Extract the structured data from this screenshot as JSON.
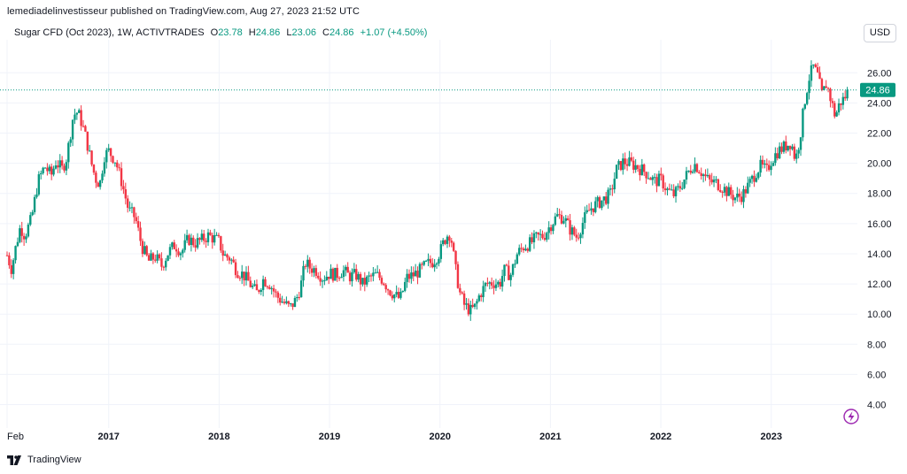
{
  "header": {
    "published": "lemediadelinvestisseur published on TradingView.com, Aug 27, 2023 21:52 UTC"
  },
  "legend": {
    "symbol": "Sugar CFD (Oct 2023), 1W, ACTIVTRADES",
    "o_label": "O",
    "o_value": "23.78",
    "h_label": "H",
    "h_value": "24.86",
    "l_label": "L",
    "l_value": "23.06",
    "c_label": "C",
    "c_value": "24.86",
    "change": "+1.07 (+4.50%)"
  },
  "currency_button": "USD",
  "footer": {
    "brand": "TradingView"
  },
  "colors": {
    "up": "#089981",
    "down": "#f23645",
    "grid": "#f0f3fa",
    "axis_text": "#131722",
    "price_line": "#089981",
    "flash": "#9c27b0"
  },
  "chart_data": {
    "type": "candlestick",
    "title": "Sugar CFD (Oct 2023), 1W, ACTIVTRADES",
    "x_tick_labels": [
      "Feb",
      "2017",
      "2018",
      "2019",
      "2020",
      "2021",
      "2022",
      "2023"
    ],
    "y_tick_labels": [
      "4.00",
      "6.00",
      "8.00",
      "10.00",
      "12.00",
      "14.00",
      "16.00",
      "18.00",
      "20.00",
      "22.00",
      "24.00",
      "26.00"
    ],
    "ylim": [
      2.8,
      27.6
    ],
    "xlim": [
      2016.08,
      2023.78
    ],
    "last_price_label": "24.86",
    "last_price": 24.86,
    "grid": true,
    "price_path": [
      [
        2016.08,
        13.9
      ],
      [
        2016.12,
        13.0
      ],
      [
        2016.16,
        14.5
      ],
      [
        2016.2,
        15.8
      ],
      [
        2016.24,
        15.2
      ],
      [
        2016.3,
        16.3
      ],
      [
        2016.36,
        18.8
      ],
      [
        2016.42,
        19.8
      ],
      [
        2016.48,
        19.2
      ],
      [
        2016.52,
        20.1
      ],
      [
        2016.58,
        19.6
      ],
      [
        2016.62,
        20.4
      ],
      [
        2016.68,
        23.2
      ],
      [
        2016.72,
        23.4
      ],
      [
        2016.76,
        22.6
      ],
      [
        2016.8,
        21.5
      ],
      [
        2016.84,
        20.1
      ],
      [
        2016.88,
        19.0
      ],
      [
        2016.92,
        18.6
      ],
      [
        2016.96,
        20.5
      ],
      [
        2017.0,
        20.8
      ],
      [
        2017.06,
        20.2
      ],
      [
        2017.12,
        18.7
      ],
      [
        2017.18,
        16.9
      ],
      [
        2017.24,
        16.4
      ],
      [
        2017.3,
        14.5
      ],
      [
        2017.36,
        13.5
      ],
      [
        2017.42,
        13.8
      ],
      [
        2017.48,
        13.2
      ],
      [
        2017.54,
        14.1
      ],
      [
        2017.6,
        14.6
      ],
      [
        2017.66,
        14.1
      ],
      [
        2017.72,
        15.0
      ],
      [
        2017.78,
        14.7
      ],
      [
        2017.84,
        14.9
      ],
      [
        2017.9,
        15.2
      ],
      [
        2017.96,
        15.0
      ],
      [
        2018.0,
        14.8
      ],
      [
        2018.04,
        13.9
      ],
      [
        2018.1,
        13.7
      ],
      [
        2018.16,
        12.9
      ],
      [
        2018.22,
        12.6
      ],
      [
        2018.28,
        12.0
      ],
      [
        2018.34,
        11.4
      ],
      [
        2018.4,
        12.3
      ],
      [
        2018.46,
        12.0
      ],
      [
        2018.52,
        11.2
      ],
      [
        2018.58,
        10.8
      ],
      [
        2018.64,
        10.4
      ],
      [
        2018.7,
        11.0
      ],
      [
        2018.74,
        11.9
      ],
      [
        2018.78,
        13.4
      ],
      [
        2018.82,
        13.1
      ],
      [
        2018.88,
        12.9
      ],
      [
        2018.94,
        12.4
      ],
      [
        2019.0,
        12.7
      ],
      [
        2019.06,
        12.6
      ],
      [
        2019.12,
        12.9
      ],
      [
        2019.18,
        12.5
      ],
      [
        2019.24,
        12.6
      ],
      [
        2019.3,
        12.0
      ],
      [
        2019.36,
        12.4
      ],
      [
        2019.42,
        12.6
      ],
      [
        2019.48,
        12.3
      ],
      [
        2019.54,
        11.6
      ],
      [
        2019.6,
        11.2
      ],
      [
        2019.64,
        11.0
      ],
      [
        2019.7,
        12.4
      ],
      [
        2019.76,
        12.6
      ],
      [
        2019.82,
        12.9
      ],
      [
        2019.88,
        13.3
      ],
      [
        2019.94,
        13.5
      ],
      [
        2020.0,
        14.1
      ],
      [
        2020.04,
        14.9
      ],
      [
        2020.08,
        15.4
      ],
      [
        2020.1,
        15.1
      ],
      [
        2020.14,
        13.0
      ],
      [
        2020.18,
        11.4
      ],
      [
        2020.22,
        10.6
      ],
      [
        2020.28,
        10.2
      ],
      [
        2020.32,
        10.5
      ],
      [
        2020.36,
        11.3
      ],
      [
        2020.42,
        12.0
      ],
      [
        2020.48,
        12.1
      ],
      [
        2020.54,
        12.0
      ],
      [
        2020.58,
        12.9
      ],
      [
        2020.64,
        12.6
      ],
      [
        2020.7,
        14.0
      ],
      [
        2020.76,
        14.5
      ],
      [
        2020.82,
        14.7
      ],
      [
        2020.88,
        15.1
      ],
      [
        2020.94,
        15.2
      ],
      [
        2021.0,
        15.9
      ],
      [
        2021.06,
        16.5
      ],
      [
        2021.12,
        16.4
      ],
      [
        2021.18,
        15.6
      ],
      [
        2021.24,
        15.1
      ],
      [
        2021.3,
        16.2
      ],
      [
        2021.36,
        17.0
      ],
      [
        2021.42,
        17.3
      ],
      [
        2021.48,
        17.6
      ],
      [
        2021.54,
        17.9
      ],
      [
        2021.6,
        19.6
      ],
      [
        2021.66,
        20.1
      ],
      [
        2021.72,
        20.0
      ],
      [
        2021.78,
        19.8
      ],
      [
        2021.84,
        19.5
      ],
      [
        2021.88,
        19.3
      ],
      [
        2021.94,
        18.8
      ],
      [
        2022.0,
        18.9
      ],
      [
        2022.06,
        18.2
      ],
      [
        2022.12,
        17.9
      ],
      [
        2022.18,
        18.5
      ],
      [
        2022.24,
        19.3
      ],
      [
        2022.3,
        20.0
      ],
      [
        2022.36,
        19.5
      ],
      [
        2022.4,
        19.1
      ],
      [
        2022.44,
        18.8
      ],
      [
        2022.5,
        18.7
      ],
      [
        2022.56,
        18.4
      ],
      [
        2022.62,
        18.0
      ],
      [
        2022.68,
        17.7
      ],
      [
        2022.74,
        17.9
      ],
      [
        2022.8,
        18.6
      ],
      [
        2022.86,
        19.4
      ],
      [
        2022.9,
        19.8
      ],
      [
        2022.96,
        19.5
      ],
      [
        2023.0,
        20.2
      ],
      [
        2023.06,
        20.8
      ],
      [
        2023.12,
        21.1
      ],
      [
        2023.18,
        21.4
      ],
      [
        2023.22,
        20.2
      ],
      [
        2023.26,
        21.7
      ],
      [
        2023.3,
        24.0
      ],
      [
        2023.34,
        25.6
      ],
      [
        2023.38,
        26.4
      ],
      [
        2023.42,
        25.8
      ],
      [
        2023.46,
        24.5
      ],
      [
        2023.5,
        25.3
      ],
      [
        2023.54,
        24.2
      ],
      [
        2023.58,
        23.1
      ],
      [
        2023.62,
        24.0
      ],
      [
        2023.66,
        24.3
      ],
      [
        2023.7,
        24.86
      ]
    ]
  }
}
